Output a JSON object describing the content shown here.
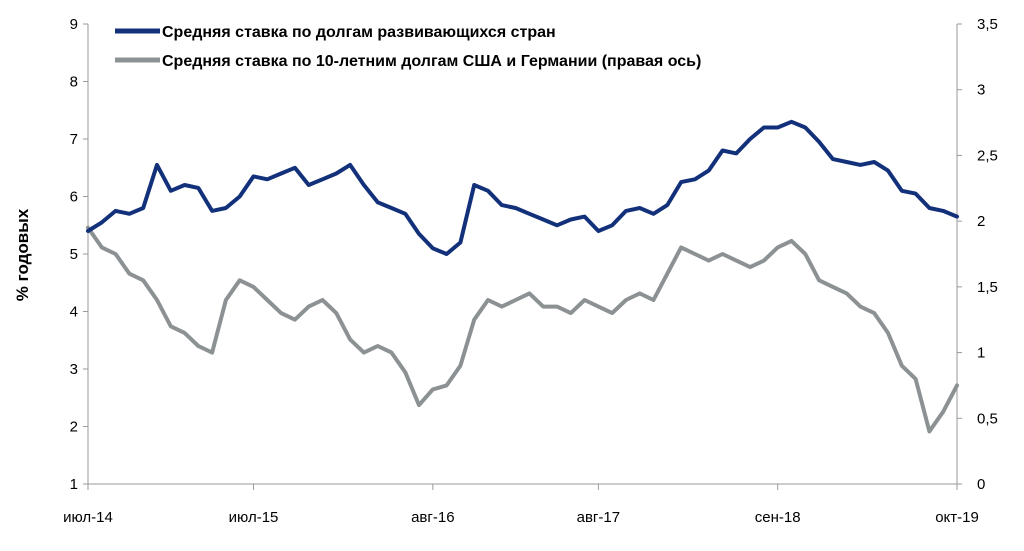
{
  "chart_data": {
    "type": "line",
    "xlabel": "",
    "ylabel": "% годовых",
    "y2label": "",
    "ylim": [
      1,
      9
    ],
    "y2lim": [
      0,
      3.5
    ],
    "y_ticks": [
      "1",
      "2",
      "3",
      "4",
      "5",
      "6",
      "7",
      "8",
      "9"
    ],
    "y2_ticks": [
      "0",
      "0,5",
      "1",
      "1,5",
      "2",
      "2,5",
      "3",
      "3,5"
    ],
    "x_tick_labels": [
      "июл-14",
      "июл-15",
      "авг-16",
      "авг-17",
      "сен-18",
      "окт-19"
    ],
    "x_tick_dates": [
      "2014-07",
      "2015-07",
      "2016-08",
      "2017-08",
      "2018-09",
      "2019-10"
    ],
    "x_range": [
      "2014-07",
      "2019-10"
    ],
    "grid": false,
    "legend_position": "top-center",
    "series": [
      {
        "name": "Средняя ставка по долгам развивающихся стран",
        "axis": "left",
        "color": "#13317a",
        "points": [
          [
            "2014-07",
            5.4
          ],
          [
            "2014-08",
            5.55
          ],
          [
            "2014-09",
            5.75
          ],
          [
            "2014-10",
            5.7
          ],
          [
            "2014-11",
            5.8
          ],
          [
            "2014-12",
            6.55
          ],
          [
            "2015-01",
            6.1
          ],
          [
            "2015-02",
            6.2
          ],
          [
            "2015-03",
            6.15
          ],
          [
            "2015-04",
            5.75
          ],
          [
            "2015-05",
            5.8
          ],
          [
            "2015-06",
            6.0
          ],
          [
            "2015-07",
            6.35
          ],
          [
            "2015-08",
            6.3
          ],
          [
            "2015-09",
            6.4
          ],
          [
            "2015-10",
            6.5
          ],
          [
            "2015-11",
            6.2
          ],
          [
            "2015-12",
            6.3
          ],
          [
            "2016-01",
            6.4
          ],
          [
            "2016-02",
            6.55
          ],
          [
            "2016-03",
            6.2
          ],
          [
            "2016-04",
            5.9
          ],
          [
            "2016-05",
            5.8
          ],
          [
            "2016-06",
            5.7
          ],
          [
            "2016-07",
            5.35
          ],
          [
            "2016-08",
            5.1
          ],
          [
            "2016-09",
            5.0
          ],
          [
            "2016-10",
            5.2
          ],
          [
            "2016-11",
            6.2
          ],
          [
            "2016-12",
            6.1
          ],
          [
            "2017-01",
            5.85
          ],
          [
            "2017-02",
            5.8
          ],
          [
            "2017-03",
            5.7
          ],
          [
            "2017-04",
            5.6
          ],
          [
            "2017-05",
            5.5
          ],
          [
            "2017-06",
            5.6
          ],
          [
            "2017-07",
            5.65
          ],
          [
            "2017-08",
            5.4
          ],
          [
            "2017-09",
            5.5
          ],
          [
            "2017-10",
            5.75
          ],
          [
            "2017-11",
            5.8
          ],
          [
            "2017-12",
            5.7
          ],
          [
            "2018-01",
            5.85
          ],
          [
            "2018-02",
            6.25
          ],
          [
            "2018-03",
            6.3
          ],
          [
            "2018-04",
            6.45
          ],
          [
            "2018-05",
            6.8
          ],
          [
            "2018-06",
            6.75
          ],
          [
            "2018-07",
            7.0
          ],
          [
            "2018-08",
            7.2
          ],
          [
            "2018-09",
            7.2
          ],
          [
            "2018-10",
            7.3
          ],
          [
            "2018-11",
            7.2
          ],
          [
            "2018-12",
            6.95
          ],
          [
            "2019-01",
            6.65
          ],
          [
            "2019-02",
            6.6
          ],
          [
            "2019-03",
            6.55
          ],
          [
            "2019-04",
            6.6
          ],
          [
            "2019-05",
            6.45
          ],
          [
            "2019-06",
            6.1
          ],
          [
            "2019-07",
            6.05
          ],
          [
            "2019-08",
            5.8
          ],
          [
            "2019-09",
            5.75
          ],
          [
            "2019-10",
            5.65
          ]
        ]
      },
      {
        "name": "Средняя ставка по 10-летним долгам США и Германии (правая ось)",
        "axis": "right",
        "color": "#8c9193",
        "points": [
          [
            "2014-07",
            1.95
          ],
          [
            "2014-08",
            1.8
          ],
          [
            "2014-09",
            1.75
          ],
          [
            "2014-10",
            1.6
          ],
          [
            "2014-11",
            1.55
          ],
          [
            "2014-12",
            1.4
          ],
          [
            "2015-01",
            1.2
          ],
          [
            "2015-02",
            1.15
          ],
          [
            "2015-03",
            1.05
          ],
          [
            "2015-04",
            1.0
          ],
          [
            "2015-05",
            1.4
          ],
          [
            "2015-06",
            1.55
          ],
          [
            "2015-07",
            1.5
          ],
          [
            "2015-08",
            1.4
          ],
          [
            "2015-09",
            1.3
          ],
          [
            "2015-10",
            1.25
          ],
          [
            "2015-11",
            1.35
          ],
          [
            "2015-12",
            1.4
          ],
          [
            "2016-01",
            1.3
          ],
          [
            "2016-02",
            1.1
          ],
          [
            "2016-03",
            1.0
          ],
          [
            "2016-04",
            1.05
          ],
          [
            "2016-05",
            1.0
          ],
          [
            "2016-06",
            0.85
          ],
          [
            "2016-07",
            0.6
          ],
          [
            "2016-08",
            0.72
          ],
          [
            "2016-09",
            0.75
          ],
          [
            "2016-10",
            0.9
          ],
          [
            "2016-11",
            1.25
          ],
          [
            "2016-12",
            1.4
          ],
          [
            "2017-01",
            1.35
          ],
          [
            "2017-02",
            1.4
          ],
          [
            "2017-03",
            1.45
          ],
          [
            "2017-04",
            1.35
          ],
          [
            "2017-05",
            1.35
          ],
          [
            "2017-06",
            1.3
          ],
          [
            "2017-07",
            1.4
          ],
          [
            "2017-08",
            1.35
          ],
          [
            "2017-09",
            1.3
          ],
          [
            "2017-10",
            1.4
          ],
          [
            "2017-11",
            1.45
          ],
          [
            "2017-12",
            1.4
          ],
          [
            "2018-01",
            1.6
          ],
          [
            "2018-02",
            1.8
          ],
          [
            "2018-03",
            1.75
          ],
          [
            "2018-04",
            1.7
          ],
          [
            "2018-05",
            1.75
          ],
          [
            "2018-06",
            1.7
          ],
          [
            "2018-07",
            1.65
          ],
          [
            "2018-08",
            1.7
          ],
          [
            "2018-09",
            1.8
          ],
          [
            "2018-10",
            1.85
          ],
          [
            "2018-11",
            1.75
          ],
          [
            "2018-12",
            1.55
          ],
          [
            "2019-01",
            1.5
          ],
          [
            "2019-02",
            1.45
          ],
          [
            "2019-03",
            1.35
          ],
          [
            "2019-04",
            1.3
          ],
          [
            "2019-05",
            1.15
          ],
          [
            "2019-06",
            0.9
          ],
          [
            "2019-07",
            0.8
          ],
          [
            "2019-08",
            0.4
          ],
          [
            "2019-09",
            0.55
          ],
          [
            "2019-10",
            0.75
          ]
        ]
      }
    ]
  }
}
